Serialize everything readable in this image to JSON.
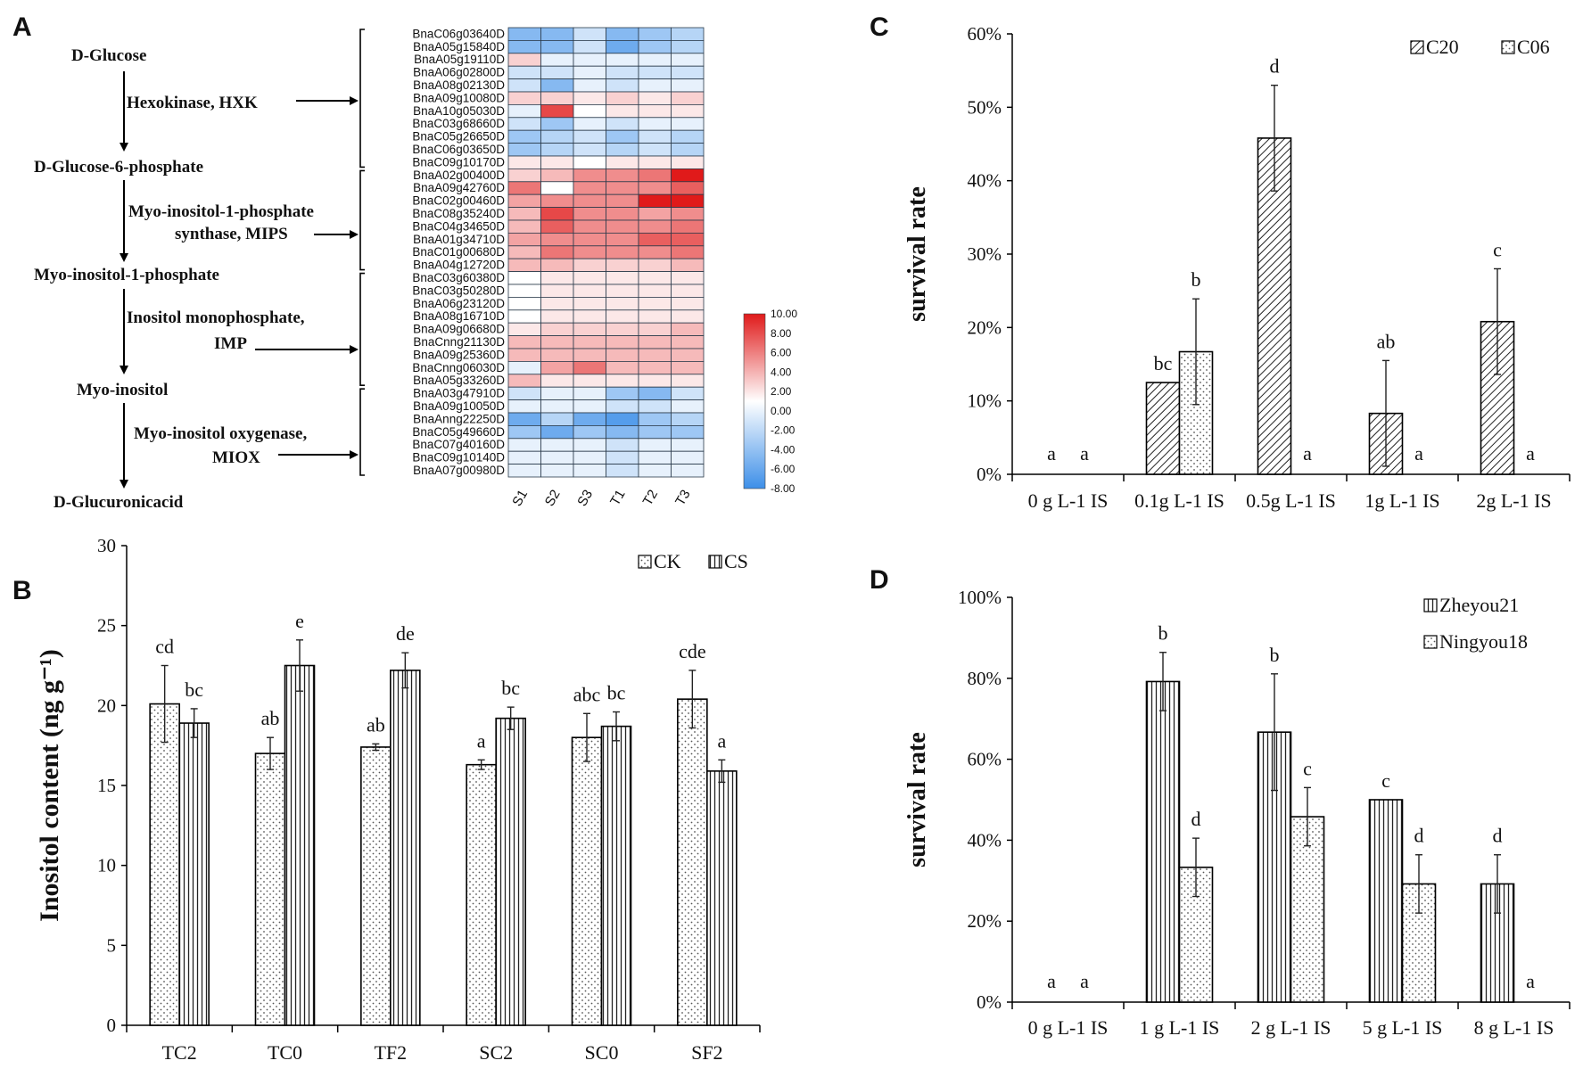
{
  "panel_letters": {
    "a": "A",
    "b": "B",
    "c": "C",
    "d": "D"
  },
  "colors": {
    "high": "#e01a1a",
    "mid": "#ffffff",
    "low": "#3d8fe8"
  },
  "pathway": {
    "nodes": [
      "D-Glucose",
      "D-Glucose-6-phosphate",
      "Myo-inositol-1-phosphate",
      "Myo-inositol",
      "D-Glucuronicacid"
    ],
    "enzymes": [
      {
        "line1": "Hexokinase, HXK",
        "line2": ""
      },
      {
        "line1": "Myo-inositol-1-phosphate",
        "line2": "synthase, MIPS"
      },
      {
        "line1": "Inositol monophosphate,",
        "line2": "IMP"
      },
      {
        "line1": "Myo-inositol oxygenase,",
        "line2": "MIOX"
      }
    ]
  },
  "chart_data": [
    {
      "panel": "A",
      "type": "heatmap",
      "columns": [
        "S1",
        "S2",
        "S3",
        "T1",
        "T2",
        "T3"
      ],
      "colorbar": {
        "min": -8,
        "max": 10,
        "ticks": [
          "10.00",
          "8.00",
          "6.00",
          "4.00",
          "2.00",
          "0.00",
          "-2.00",
          "-4.00",
          "-6.00",
          "-8.00"
        ]
      },
      "groups": [
        {
          "enzyme": "HXK",
          "genes": [
            "BnaC06g03640D",
            "BnaA05g15840D",
            "BnaA05g19110D",
            "BnaA06g02800D",
            "BnaA08g02130D",
            "BnaA09g10080D",
            "BnaA10g05030D",
            "BnaC03g68660D",
            "BnaC05g26650D",
            "BnaC06g03650D",
            "BnaC09g10170D"
          ]
        },
        {
          "enzyme": "MIPS",
          "genes": [
            "BnaA02g00400D",
            "BnaA09g42760D",
            "BnaC02g00460D",
            "BnaC08g35240D",
            "BnaC04g34650D",
            "BnaA01g34710D",
            "BnaC01g00680D",
            "BnaA04g12720D"
          ]
        },
        {
          "enzyme": "IMP",
          "genes": [
            "BnaC03g60380D",
            "BnaC03g50280D",
            "BnaA06g23120D",
            "BnaA08g16710D",
            "BnaA09g06680D",
            "BnaCnng21130D",
            "BnaA09g25360D",
            "BnaCnng06030D",
            "BnaA05g33260D"
          ]
        },
        {
          "enzyme": "MIOX",
          "genes": [
            "BnaA03g47910D",
            "BnaA09g10050D",
            "BnaAnng22250D",
            "BnaC05g49660D",
            "BnaC07g40160D",
            "BnaC09g10140D",
            "BnaA07g00980D"
          ]
        }
      ],
      "values": [
        [
          -5,
          -5,
          -2,
          -5,
          -4,
          -3
        ],
        [
          -5,
          -5,
          -2,
          -6,
          -4,
          -3
        ],
        [
          2,
          -1,
          -1,
          -1,
          -1,
          -1
        ],
        [
          -2,
          -2,
          -1,
          -2,
          -2,
          -2
        ],
        [
          -2,
          -5,
          -1,
          -2,
          -1,
          -1
        ],
        [
          2,
          2,
          1,
          2,
          1,
          2
        ],
        [
          -1,
          8,
          0,
          1,
          1,
          1
        ],
        [
          -2,
          -4,
          -1,
          -2,
          -1,
          -1
        ],
        [
          -4,
          -3,
          -2,
          -4,
          -2,
          -3
        ],
        [
          -4,
          -3,
          -2,
          -3,
          -2,
          -3
        ],
        [
          1,
          1,
          0,
          1,
          1,
          1
        ],
        [
          2,
          3,
          5,
          5,
          6,
          10
        ],
        [
          6,
          0,
          5,
          5,
          5,
          7
        ],
        [
          4,
          5,
          5,
          5,
          10,
          10
        ],
        [
          3,
          8,
          5,
          5,
          4,
          5
        ],
        [
          3,
          7,
          5,
          5,
          5,
          6
        ],
        [
          4,
          5,
          5,
          5,
          7,
          7
        ],
        [
          3,
          6,
          5,
          5,
          5,
          6
        ],
        [
          3,
          3,
          2,
          2,
          2,
          3
        ],
        [
          0,
          1,
          1,
          1,
          1,
          1
        ],
        [
          0,
          1,
          1,
          1,
          1,
          1
        ],
        [
          0,
          1,
          1,
          1,
          1,
          1
        ],
        [
          0,
          1,
          1,
          1,
          1,
          1
        ],
        [
          1,
          2,
          2,
          2,
          2,
          3
        ],
        [
          3,
          3,
          3,
          3,
          3,
          3
        ],
        [
          3,
          3,
          3,
          3,
          3,
          3
        ],
        [
          -1,
          4,
          6,
          3,
          3,
          3
        ],
        [
          3,
          1,
          1,
          1,
          1,
          1
        ],
        [
          -2,
          -1,
          -1,
          -4,
          -5,
          -2
        ],
        [
          -1,
          -1,
          -1,
          -2,
          -2,
          -1
        ],
        [
          -6,
          -3,
          -6,
          -7,
          -4,
          -3
        ],
        [
          -4,
          -6,
          -4,
          -5,
          -4,
          -4
        ],
        [
          -1,
          -1,
          -1,
          -2,
          -1,
          -1
        ],
        [
          -1,
          -1,
          -1,
          -2,
          -1,
          -1
        ],
        [
          -1,
          -1,
          -1,
          -2,
          -1,
          -1
        ]
      ]
    },
    {
      "panel": "B",
      "type": "bar",
      "categories": [
        "TC2",
        "TC0",
        "TF2",
        "SC2",
        "SC0",
        "SF2"
      ],
      "ylabel": "Inositol content (ng g⁻¹)",
      "ylim": [
        0,
        30
      ],
      "yticks": [
        0,
        5,
        10,
        15,
        20,
        25,
        30
      ],
      "series": [
        {
          "name": "CK",
          "pattern": "dots",
          "values": [
            20.1,
            17.0,
            17.4,
            16.3,
            18.0,
            20.4
          ],
          "errors": [
            2.4,
            1.0,
            0.2,
            0.3,
            1.5,
            1.8
          ],
          "labels": [
            "cd",
            "ab",
            "ab",
            "a",
            "abc",
            "cde"
          ]
        },
        {
          "name": "CS",
          "pattern": "vlines",
          "values": [
            18.9,
            22.5,
            22.2,
            19.2,
            18.7,
            15.9
          ],
          "errors": [
            0.9,
            1.6,
            1.1,
            0.7,
            0.9,
            0.7
          ],
          "labels": [
            "bc",
            "e",
            "de",
            "bc",
            "bc",
            "a"
          ]
        }
      ],
      "legend": "top-right"
    },
    {
      "panel": "C",
      "type": "bar",
      "categories": [
        "0 g L-1 IS",
        "0.1g L-1 IS",
        "0.5g L-1 IS",
        "1g L-1 IS",
        "2g L-1 IS"
      ],
      "ylabel": "survival rate",
      "ylim": [
        0,
        0.6
      ],
      "yticks": [
        "0%",
        "10%",
        "20%",
        "30%",
        "40%",
        "50%",
        "60%"
      ],
      "series": [
        {
          "name": "C20",
          "pattern": "diag",
          "values": [
            0,
            0.125,
            0.458,
            0.083,
            0.208
          ],
          "errors": [
            0,
            0,
            0.072,
            0.072,
            0.072
          ],
          "labels": [
            "a",
            "bc",
            "d",
            "ab",
            "c"
          ]
        },
        {
          "name": "C06",
          "pattern": "dots",
          "values": [
            0,
            0.167,
            0,
            0,
            0
          ],
          "errors": [
            0,
            0.072,
            0,
            0,
            0
          ],
          "labels": [
            "a",
            "b",
            "a",
            "a",
            "a"
          ]
        }
      ],
      "legend": "top-right"
    },
    {
      "panel": "D",
      "type": "bar",
      "categories": [
        "0 g L-1 IS",
        "1 g L-1 IS",
        "2 g L-1 IS",
        "5 g L-1 IS",
        "8 g L-1 IS"
      ],
      "ylabel": "survival rate",
      "ylim": [
        0,
        1
      ],
      "yticks": [
        "0%",
        "20%",
        "40%",
        "60%",
        "80%",
        "100%"
      ],
      "series": [
        {
          "name": "Zheyou21",
          "pattern": "vlines",
          "values": [
            0,
            0.792,
            0.667,
            0.5,
            0.292
          ],
          "errors": [
            0,
            0.072,
            0.144,
            0,
            0.072
          ],
          "labels": [
            "a",
            "b",
            "b",
            "c",
            "d"
          ]
        },
        {
          "name": "Ningyou18",
          "pattern": "dots",
          "values": [
            0,
            0.333,
            0.458,
            0.292,
            0
          ],
          "errors": [
            0,
            0.072,
            0.072,
            0.072,
            0
          ],
          "labels": [
            "a",
            "d",
            "c",
            "d",
            "a"
          ]
        }
      ],
      "legend": "top-right"
    }
  ]
}
